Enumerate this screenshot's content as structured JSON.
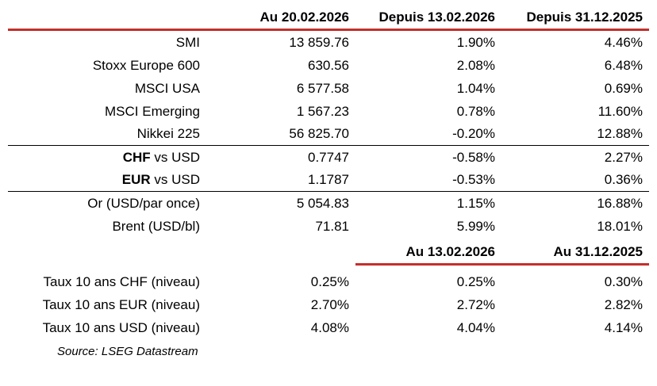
{
  "colors": {
    "accent_red": "#C42F2B",
    "rule_black": "#000000",
    "text": "#000000",
    "background": "#FFFFFF"
  },
  "chart_data": {
    "type": "table",
    "source": "Source: LSEG Datastream",
    "sections": [
      {
        "headers": [
          "Au 20.02.2026",
          "Depuis 13.02.2026",
          "Depuis 31.12.2025"
        ],
        "rows": [
          {
            "label": "SMI",
            "level": "13 859.76",
            "chg_week": "1.90%",
            "chg_ytd": "4.46%"
          },
          {
            "label": "Stoxx Europe 600",
            "level": "630.56",
            "chg_week": "2.08%",
            "chg_ytd": "6.48%"
          },
          {
            "label": "MSCI USA",
            "level": "6 577.58",
            "chg_week": "1.04%",
            "chg_ytd": "0.69%"
          },
          {
            "label": "MSCI Emerging",
            "level": "1 567.23",
            "chg_week": "0.78%",
            "chg_ytd": "11.60%"
          },
          {
            "label": "Nikkei 225",
            "level": "56 825.70",
            "chg_week": "-0.20%",
            "chg_ytd": "12.88%"
          },
          {
            "label_bold": "CHF",
            "label_rest": " vs USD",
            "level": "0.7747",
            "chg_week": "-0.58%",
            "chg_ytd": "2.27%"
          },
          {
            "label_bold": "EUR",
            "label_rest": " vs USD",
            "level": "1.1787",
            "chg_week": "-0.53%",
            "chg_ytd": "0.36%"
          },
          {
            "label": "Or (USD/par once)",
            "level": "5 054.83",
            "chg_week": "1.15%",
            "chg_ytd": "16.88%"
          },
          {
            "label": "Brent (USD/bl)",
            "level": "71.81",
            "chg_week": "5.99%",
            "chg_ytd": "18.01%"
          }
        ]
      },
      {
        "headers": [
          "Au 13.02.2026",
          "Au 31.12.2025"
        ],
        "rows": [
          {
            "label": "Taux 10 ans CHF (niveau)",
            "level": "0.25%",
            "prev_week": "0.25%",
            "prev_ytd": "0.30%"
          },
          {
            "label": "Taux 10 ans EUR (niveau)",
            "level": "2.70%",
            "prev_week": "2.72%",
            "prev_ytd": "2.82%"
          },
          {
            "label": "Taux 10 ans USD (niveau)",
            "level": "4.08%",
            "prev_week": "4.04%",
            "prev_ytd": "4.14%"
          }
        ]
      }
    ]
  }
}
